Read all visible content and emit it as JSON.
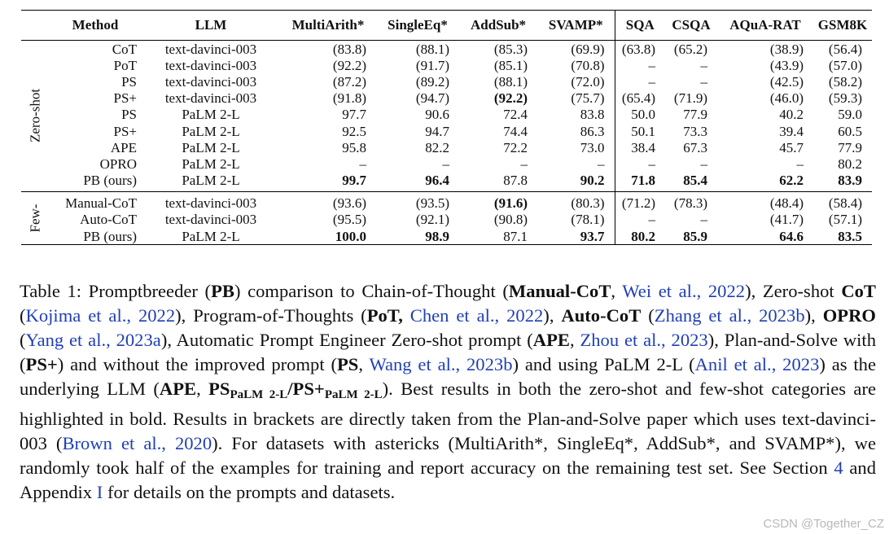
{
  "table": {
    "headers": [
      "",
      "Method",
      "LLM",
      "MultiArith*",
      "SingleEq*",
      "AddSub*",
      "SVAMP*",
      "SQA",
      "CSQA",
      "AQuA-RAT",
      "GSM8K"
    ],
    "groups": [
      {
        "label": "Zero-shot",
        "rows": [
          {
            "method": "CoT",
            "llm": "text-davinci-003",
            "vals": [
              "(83.8)",
              "(88.1)",
              "(85.3)",
              "(69.9)",
              "(63.8)",
              "(65.2)",
              "(38.9)",
              "(56.4)"
            ]
          },
          {
            "method": "PoT",
            "llm": "text-davinci-003",
            "vals": [
              "(92.2)",
              "(91.7)",
              "(85.1)",
              "(70.8)",
              "–",
              "–",
              "(43.9)",
              "(57.0)"
            ]
          },
          {
            "method": "PS",
            "llm": "text-davinci-003",
            "vals": [
              "(87.2)",
              "(89.2)",
              "(88.1)",
              "(72.0)",
              "–",
              "–",
              "(42.5)",
              "(58.2)"
            ]
          },
          {
            "method": "PS+",
            "llm": "text-davinci-003",
            "vals": [
              "(91.8)",
              "(94.7)",
              "(92.2)",
              "(75.7)",
              "(65.4)",
              "(71.9)",
              "(46.0)",
              "(59.3)"
            ]
          },
          {
            "method": "PS",
            "llm": "PaLM 2-L",
            "vals": [
              "97.7",
              "90.6",
              "72.4",
              "83.8",
              "50.0",
              "77.9",
              "40.2",
              "59.0"
            ]
          },
          {
            "method": "PS+",
            "llm": "PaLM 2-L",
            "vals": [
              "92.5",
              "94.7",
              "74.4",
              "86.3",
              "50.1",
              "73.3",
              "39.4",
              "60.5"
            ]
          },
          {
            "method": "APE",
            "llm": "PaLM 2-L",
            "vals": [
              "95.8",
              "82.2",
              "72.2",
              "73.0",
              "38.4",
              "67.3",
              "45.7",
              "77.9"
            ]
          },
          {
            "method": "OPRO",
            "llm": "PaLM 2-L",
            "vals": [
              "–",
              "–",
              "–",
              "–",
              "–",
              "–",
              "–",
              "80.2"
            ]
          },
          {
            "method": "PB (ours)",
            "llm": "PaLM 2-L",
            "vals": [
              "99.7",
              "96.4",
              "87.8",
              "90.2",
              "71.8",
              "85.4",
              "62.2",
              "83.9"
            ]
          }
        ]
      },
      {
        "label": "Few-",
        "rows": [
          {
            "method": "Manual-CoT",
            "llm": "text-davinci-003",
            "vals": [
              "(93.6)",
              "(93.5)",
              "(91.6)",
              "(80.3)",
              "(71.2)",
              "(78.3)",
              "(48.4)",
              "(58.4)"
            ]
          },
          {
            "method": "Auto-CoT",
            "llm": "text-davinci-003",
            "vals": [
              "(95.5)",
              "(92.1)",
              "(90.8)",
              "(78.1)",
              "–",
              "–",
              "(41.7)",
              "(57.1)"
            ]
          },
          {
            "method": "PB (ours)",
            "llm": "PaLM 2-L",
            "vals": [
              "100.0",
              "98.9",
              "87.1",
              "93.7",
              "80.2",
              "85.9",
              "64.6",
              "83.5"
            ]
          }
        ]
      }
    ]
  },
  "caption": {
    "label": "Table 1:",
    "t1": "Promptbreeder (",
    "pb": "PB",
    "t2": ") comparison to Chain-of-Thought (",
    "manualcot": "Manual-CoT",
    "t3": ", ",
    "c1": "Wei et al., 2022",
    "t4": "), Zero-shot ",
    "cot": "CoT",
    "t5": " (",
    "c2": "Kojima et al., 2022",
    "t6": "), Program-of-Thoughts (",
    "pot": "PoT,",
    "t7": " ",
    "c3": "Chen et al., 2022",
    "t8": "), ",
    "autocot": "Auto-CoT",
    "t9": " (",
    "c4": "Zhang et al., 2023b",
    "t10": "), ",
    "opro": "OPRO",
    "t11": " (",
    "c5": "Yang et al., 2023a",
    "t12": "), Automatic Prompt Engineer Zero-shot prompt (",
    "ape": "APE",
    "t13": ", ",
    "c6": "Zhou et al., 2023",
    "t14": "), Plan-and-Solve with (",
    "psplus": "PS+",
    "t15": ") and without the improved prompt (",
    "ps": "PS",
    "t16": ", ",
    "c7": "Wang et al., 2023b",
    "t17": ") and using PaLM 2-L (",
    "c8": "Anil et al., 2023",
    "t18": ") as the underlying LLM (",
    "ape2": "APE",
    "t19": ", ",
    "ps2": "PS",
    "sub1": "PaLM 2-L",
    "ps3": "/PS+",
    "sub2": "PaLM 2-L",
    "t20": "). Best results in both the zero-shot and few-shot categories are highlighted in bold. Results in brackets are directly taken from the Plan-and-Solve paper which uses text-davinci-003 (",
    "c9": "Brown et al., 2020",
    "t21": "). For datasets with astericks (MultiArith*, SingleEq*, AddSub*, and SVAMP*), we randomly took half of the examples for training and report accuracy on the remaining test set. See Section ",
    "sec": "4",
    "t22": " and Appendix ",
    "app": "I",
    "t23": " for details on the prompts and datasets."
  },
  "watermark": "CSDN @Together_CZ"
}
